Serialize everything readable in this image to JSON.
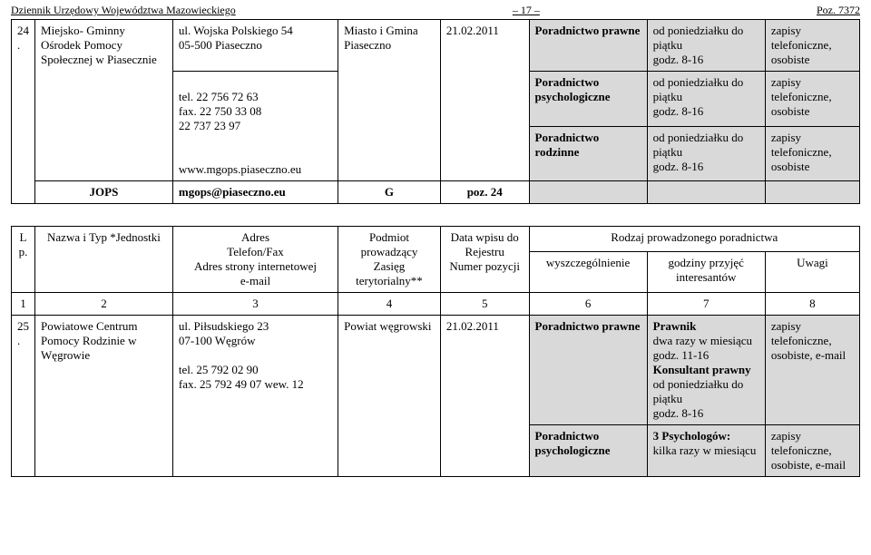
{
  "header": {
    "left": "Dziennik Urzędowy Województwa Mazowieckiego",
    "page": "– 17 –",
    "right": "Poz. 7372"
  },
  "table1": {
    "row1": {
      "lp": "24.",
      "name": "Miejsko- Gminny Ośrodek Pomocy Społecznej w Piasecznie",
      "addr": "ul. Wojska Polskiego 54\n05-500 Piaseczno",
      "podm": "Miasto i Gmina Piaseczno",
      "data": "21.02.2011",
      "wysz": "Poradnictwo prawne",
      "godz": "od poniedziałku do piątku\ngodz. 8-16",
      "uwagi": "zapisy telefoniczne, osobiste"
    },
    "row2": {
      "addr": "tel. 22 756 72 63\nfax. 22 750 33 08\n        22 737 23 97",
      "wysz": "Poradnictwo psychologiczne",
      "godz": "od poniedziałku do piątku\ngodz. 8-16",
      "uwagi": "zapisy telefoniczne, osobiste"
    },
    "row3": {
      "addr": "www.mgops.piaseczno.eu",
      "wysz": "Poradnictwo rodzinne",
      "godz": "od poniedziałku do piątku\ngodz. 8-16",
      "uwagi": "zapisy telefoniczne, osobiste"
    },
    "row4": {
      "name": "JOPS",
      "addr": "mgops@piaseczno.eu",
      "podm": "G",
      "data": "poz. 24"
    }
  },
  "table2": {
    "head": {
      "lp": "Lp.",
      "name": "Nazwa i Typ *Jednostki",
      "addr": "Adres\nTelefon/Fax\nAdres strony internetowej\ne-mail",
      "podm": "Podmiot prowadzący\nZasięg terytorialny**",
      "data": "Data wpisu do Rejestru\nNumer pozycji",
      "rodzaj": "Rodzaj prowadzonego poradnictwa",
      "wysz": "wyszczególnienie",
      "godz": "godziny przyjęć interesantów",
      "uwagi": "Uwagi",
      "nums": [
        "1",
        "2",
        "3",
        "4",
        "5",
        "6",
        "7",
        "8"
      ]
    },
    "row1": {
      "lp": "25.",
      "name": "Powiatowe Centrum Pomocy Rodzinie w Węgrowie",
      "addr": "ul. Piłsudskiego 23\n07-100 Węgrów\n\ntel. 25 792 02 90\nfax. 25 792 49 07 wew. 12",
      "podm": "Powiat węgrowski",
      "data": "21.02.2011",
      "wysz": "Poradnictwo prawne",
      "godz_html": "<span class=\"bold\">Prawnik</span><br>dwa razy w miesiącu<br>godz. 11-16<br><span class=\"bold\">Konsultant prawny</span><br>od poniedziałku do piątku<br>godz. 8-16",
      "uwagi": "zapisy telefoniczne, osobiste, e-mail"
    },
    "row2": {
      "wysz": "Poradnictwo psychologiczne",
      "godz_html": "<span class=\"bold\">3 Psychologów:</span><br>kilka razy w miesiącu",
      "uwagi": "zapisy telefoniczne, osobiste, e-mail"
    }
  }
}
